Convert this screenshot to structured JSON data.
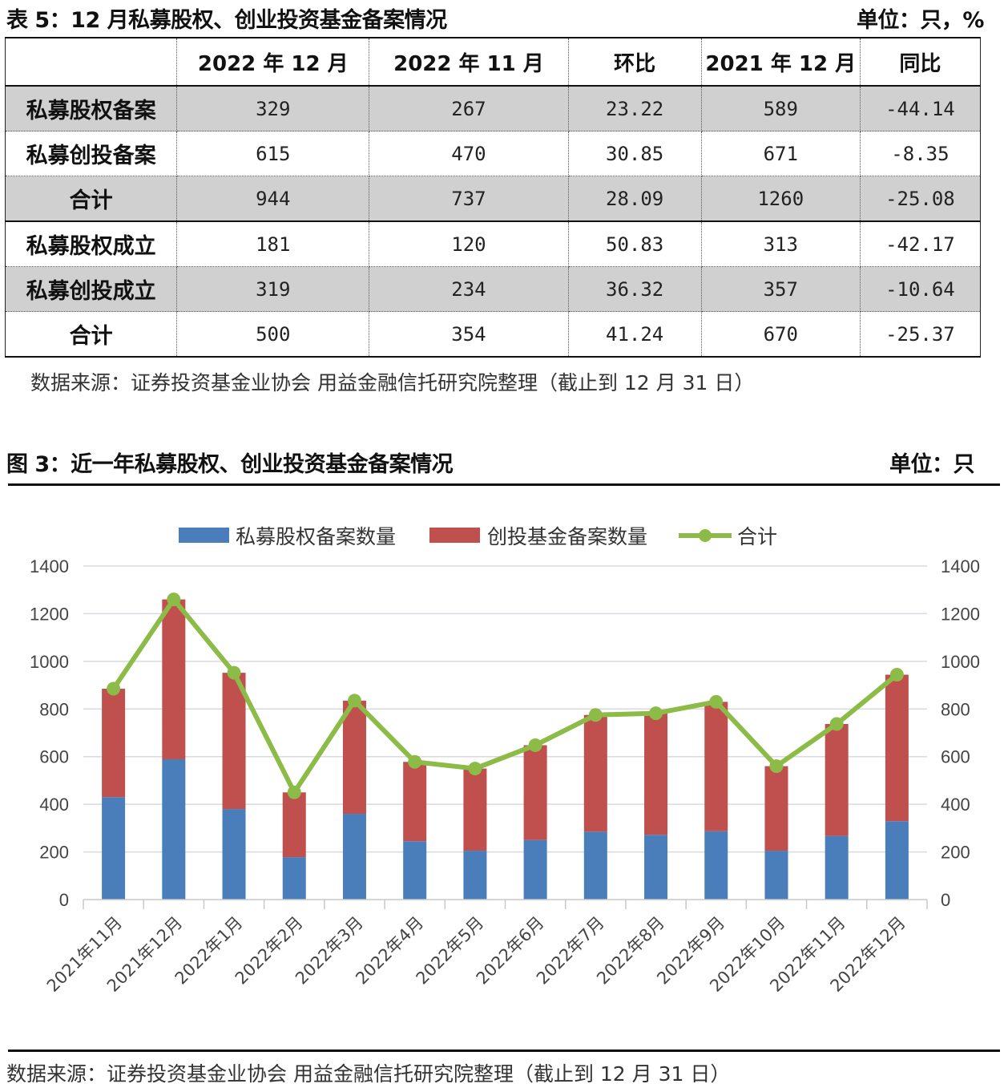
{
  "table5": {
    "title": "表 5：12 月私募股权、创业投资基金备案情况",
    "unit": "单位：只，%",
    "columns": [
      "",
      "2022 年 12 月",
      "2022 年 11 月",
      "环比",
      "2021 年 12 月",
      "同比"
    ],
    "rows": [
      {
        "label": "私募股权备案",
        "values": [
          "329",
          "267",
          "23.22",
          "589",
          "-44.14"
        ],
        "shaded": true
      },
      {
        "label": "私募创投备案",
        "values": [
          "615",
          "470",
          "30.85",
          "671",
          "-8.35"
        ],
        "shaded": false
      },
      {
        "label": "合计",
        "values": [
          "944",
          "737",
          "28.09",
          "1260",
          "-25.08"
        ],
        "shaded": true
      },
      {
        "label": "私募股权成立",
        "values": [
          "181",
          "120",
          "50.83",
          "313",
          "-42.17"
        ],
        "shaded": false
      },
      {
        "label": "私募创投成立",
        "values": [
          "319",
          "234",
          "36.32",
          "357",
          "-10.64"
        ],
        "shaded": true
      },
      {
        "label": "合计",
        "values": [
          "500",
          "354",
          "41.24",
          "670",
          "-25.37"
        ],
        "shaded": false
      }
    ],
    "source": "数据来源：证券投资基金业协会 用益金融信托研究院整理（截止到 12 月 31 日）"
  },
  "figure3": {
    "title": "图 3：近一年私募股权、创业投资基金备案情况",
    "unit": "单位：只",
    "source": "数据来源：证券投资基金业协会 用益金融信托研究院整理（截止到 12 月 31 日）"
  },
  "colors": {
    "equity": "#4a7ebb",
    "venture": "#c0504d",
    "total": "#8dbb47",
    "grid": "#d9d9e0"
  },
  "chart_data": {
    "type": "bar",
    "stacked": true,
    "title": "近一年私募股权、创业投资基金备案情况",
    "xlabel": "",
    "ylabel": "只",
    "ylim": [
      0,
      1400
    ],
    "y2lim": [
      0,
      1400
    ],
    "yticks": [
      0,
      200,
      400,
      600,
      800,
      1000,
      1200,
      1400
    ],
    "grid": true,
    "legend_position": "top",
    "categories": [
      "2021年11月",
      "2021年12月",
      "2022年1月",
      "2022年2月",
      "2022年3月",
      "2022年4月",
      "2022年5月",
      "2022年6月",
      "2022年7月",
      "2022年8月",
      "2022年9月",
      "2022年10月",
      "2022年11月",
      "2022年12月"
    ],
    "series": [
      {
        "name": "私募股权备案数量",
        "type": "bar",
        "values": [
          430,
          589,
          380,
          178,
          360,
          245,
          205,
          250,
          285,
          272,
          287,
          205,
          267,
          329
        ]
      },
      {
        "name": "创投基金备案数量",
        "type": "bar",
        "values": [
          455,
          671,
          572,
          272,
          475,
          333,
          345,
          398,
          490,
          510,
          543,
          355,
          470,
          615
        ]
      },
      {
        "name": "合计",
        "type": "line",
        "values": [
          885,
          1260,
          952,
          450,
          835,
          578,
          550,
          648,
          775,
          782,
          830,
          560,
          737,
          944
        ]
      }
    ]
  }
}
